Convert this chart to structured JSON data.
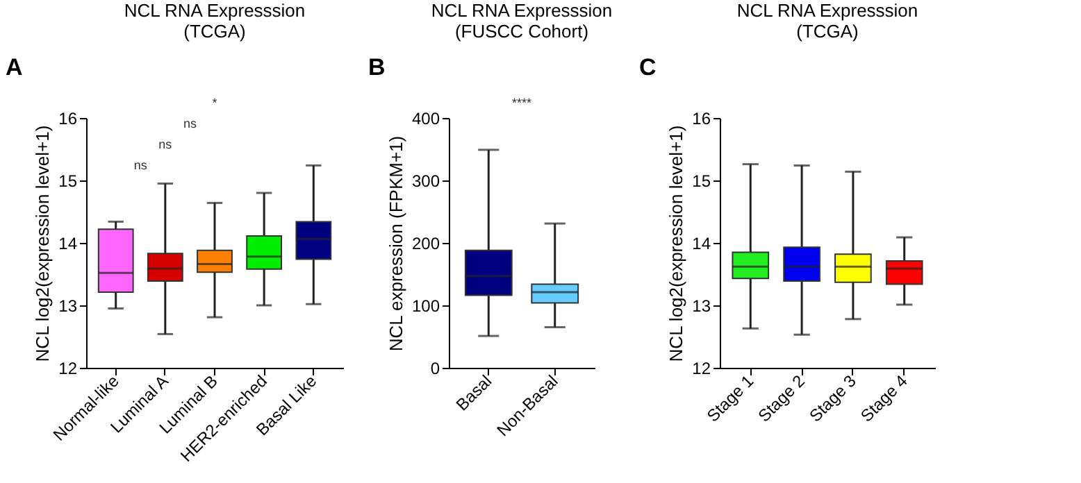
{
  "chart_data": [
    {
      "type": "box",
      "title": "NCL RNA Expresssion",
      "subtitle": "(TCGA)",
      "ylabel": "NCL log2(expression level+1)",
      "categories": [
        "Normal-like",
        "Luminal A",
        "Luminal B",
        "HER2-enriched",
        "Basal Like"
      ],
      "boxes": [
        {
          "low": 12.95,
          "q1": 13.21,
          "median": 13.52,
          "q3": 14.22,
          "high": 14.34
        },
        {
          "low": 12.54,
          "q1": 13.39,
          "median": 13.59,
          "q3": 13.83,
          "high": 14.95
        },
        {
          "low": 12.81,
          "q1": 13.53,
          "median": 13.66,
          "q3": 13.88,
          "high": 14.64
        },
        {
          "low": 13.0,
          "q1": 13.58,
          "median": 13.78,
          "q3": 14.11,
          "high": 14.8
        },
        {
          "low": 13.02,
          "q1": 13.74,
          "median": 14.06,
          "q3": 14.34,
          "high": 15.24
        }
      ],
      "colors": [
        "#ff66ff",
        "#d40000",
        "#ff8000",
        "#00ee00",
        "#000080"
      ],
      "ylim": [
        12,
        16
      ],
      "yticks": [
        12,
        13,
        14,
        15,
        16
      ],
      "grid": false,
      "annotations": [
        "A",
        "ns",
        "ns",
        "ns",
        "*"
      ]
    },
    {
      "type": "box",
      "title": "NCL RNA Expresssion",
      "subtitle": "(FUSCC Cohort)",
      "ylabel": "NCL expression (FPKM+1)",
      "categories": [
        "Basal",
        "Non-Basal"
      ],
      "boxes": [
        {
          "low": 51,
          "q1": 116,
          "median": 147,
          "q3": 188,
          "high": 349
        },
        {
          "low": 65,
          "q1": 104,
          "median": 121,
          "q3": 134,
          "high": 231
        }
      ],
      "colors": [
        "#000080",
        "#66ccff"
      ],
      "ylim": [
        0,
        400
      ],
      "yticks": [
        0,
        100,
        200,
        300,
        400
      ],
      "grid": false,
      "annotations": [
        "B",
        "****"
      ]
    },
    {
      "type": "box",
      "title": "NCL RNA Expresssion",
      "subtitle": "(TCGA)",
      "ylabel": "NCL log2(expression level+1)",
      "categories": [
        "Stage 1",
        "Stage 2",
        "Stage 3",
        "Stage 4"
      ],
      "boxes": [
        {
          "low": 12.63,
          "q1": 13.43,
          "median": 13.62,
          "q3": 13.85,
          "high": 15.26
        },
        {
          "low": 12.53,
          "q1": 13.39,
          "median": 13.62,
          "q3": 13.93,
          "high": 15.24
        },
        {
          "low": 12.78,
          "q1": 13.37,
          "median": 13.62,
          "q3": 13.82,
          "high": 15.14
        },
        {
          "low": 13.01,
          "q1": 13.34,
          "median": 13.59,
          "q3": 13.71,
          "high": 14.09
        }
      ],
      "colors": [
        "#22ee22",
        "#0000ee",
        "#ffff00",
        "#ff0000"
      ],
      "ylim": [
        12,
        16
      ],
      "yticks": [
        12,
        13,
        14,
        15,
        16
      ],
      "grid": false,
      "annotations": [
        "C"
      ]
    }
  ]
}
